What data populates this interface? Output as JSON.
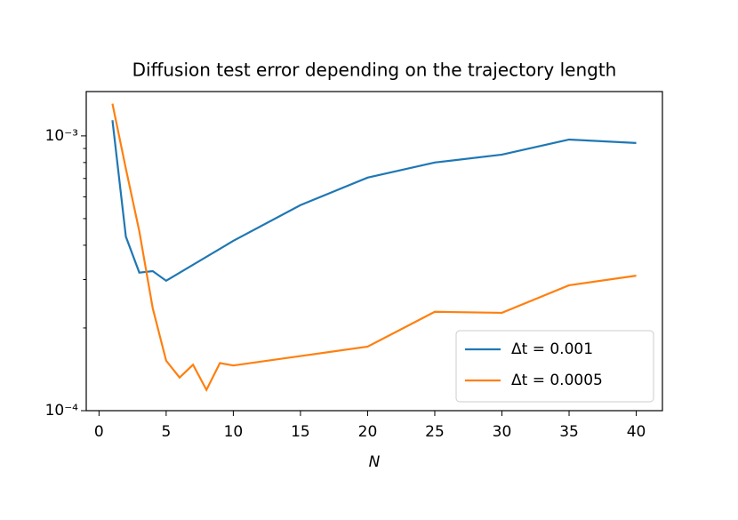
{
  "chart_data": {
    "type": "line",
    "title": "Diffusion test error depending on the trajectory length",
    "x_label": "N",
    "log_y": true,
    "xlim": [
      -0.95,
      41.95
    ],
    "ylim": [
      0.0001,
      0.00145
    ],
    "xticks": [
      0,
      5,
      10,
      15,
      20,
      25,
      30,
      35,
      40
    ],
    "yticks": [
      {
        "value": 0.001,
        "label": "10⁻³"
      },
      {
        "value": 0.0001,
        "label": "10⁻⁴"
      }
    ],
    "yminor_ticks": [
      0.0002,
      0.0003,
      0.0004,
      0.0005,
      0.0006,
      0.0007,
      0.0008,
      0.0009
    ],
    "legend_corner": "lower right",
    "series": [
      {
        "name": "Δt = 0.001",
        "color": "#1f77b4",
        "x": [
          1,
          2,
          3,
          4,
          5,
          10,
          15,
          20,
          25,
          30,
          35,
          40
        ],
        "values": [
          0.00114,
          0.00043,
          0.000318,
          0.000322,
          0.000297,
          0.000415,
          0.00056,
          0.000705,
          0.0008,
          0.000855,
          0.00097,
          0.000942
        ]
      },
      {
        "name": "Δt = 0.0005",
        "color": "#ff7f0e",
        "x": [
          1,
          2,
          3,
          4,
          5,
          6,
          7,
          8,
          9,
          10,
          15,
          20,
          25,
          30,
          35,
          40
        ],
        "values": [
          0.00131,
          0.00076,
          0.00045,
          0.000236,
          0.000152,
          0.000132,
          0.000147,
          0.000119,
          0.000149,
          0.000146,
          0.000158,
          0.000171,
          0.000229,
          0.000227,
          0.000286,
          0.00031
        ]
      }
    ]
  }
}
